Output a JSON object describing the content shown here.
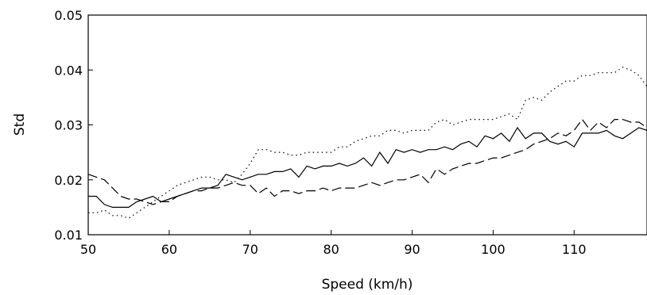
{
  "chart_data": {
    "type": "line",
    "title": "",
    "xlabel": "Speed (km/h)",
    "ylabel": "Std",
    "xlim": [
      50,
      119
    ],
    "ylim": [
      0.01,
      0.05
    ],
    "xticks": [
      "50",
      "60",
      "70",
      "80",
      "90",
      "100",
      "110"
    ],
    "yticks": [
      "0.01",
      "0.02",
      "0.03",
      "0.04",
      "0.05"
    ],
    "grid": false,
    "legend": "none",
    "series": [
      {
        "style": "solid",
        "x": [
          50,
          51,
          52,
          53,
          54,
          55,
          56,
          57,
          58,
          59,
          60,
          61,
          62,
          63,
          64,
          65,
          66,
          67,
          68,
          69,
          70,
          71,
          72,
          73,
          74,
          75,
          76,
          77,
          78,
          79,
          80,
          81,
          82,
          83,
          84,
          85,
          86,
          87,
          88,
          89,
          90,
          91,
          92,
          93,
          94,
          95,
          96,
          97,
          98,
          99,
          100,
          101,
          102,
          103,
          104,
          105,
          106,
          107,
          108,
          109,
          110,
          111,
          112,
          113,
          114,
          115,
          116,
          117,
          118,
          119
        ],
        "y": [
          0.017,
          0.017,
          0.0155,
          0.015,
          0.015,
          0.015,
          0.016,
          0.0165,
          0.017,
          0.016,
          0.0165,
          0.017,
          0.0175,
          0.018,
          0.0185,
          0.0185,
          0.019,
          0.021,
          0.0205,
          0.02,
          0.0205,
          0.021,
          0.021,
          0.0215,
          0.0215,
          0.022,
          0.0205,
          0.0225,
          0.022,
          0.0225,
          0.0225,
          0.023,
          0.0225,
          0.023,
          0.024,
          0.0225,
          0.025,
          0.023,
          0.0255,
          0.025,
          0.0255,
          0.025,
          0.0255,
          0.0255,
          0.026,
          0.0255,
          0.0265,
          0.027,
          0.026,
          0.028,
          0.0275,
          0.0285,
          0.027,
          0.0295,
          0.0275,
          0.0285,
          0.0285,
          0.027,
          0.0265,
          0.027,
          0.026,
          0.0285,
          0.0285,
          0.0285,
          0.029,
          0.028,
          0.0275,
          0.0285,
          0.0295,
          0.029
        ]
      },
      {
        "style": "dashed",
        "x": [
          50,
          51,
          52,
          53,
          54,
          55,
          56,
          57,
          58,
          59,
          60,
          61,
          62,
          63,
          64,
          65,
          66,
          67,
          68,
          69,
          70,
          71,
          72,
          73,
          74,
          75,
          76,
          77,
          78,
          79,
          80,
          81,
          82,
          83,
          84,
          85,
          86,
          87,
          88,
          89,
          90,
          91,
          92,
          93,
          94,
          95,
          96,
          97,
          98,
          99,
          100,
          101,
          102,
          103,
          104,
          105,
          106,
          107,
          108,
          109,
          110,
          111,
          112,
          113,
          114,
          115,
          116,
          117,
          118,
          119
        ],
        "y": [
          0.021,
          0.0205,
          0.02,
          0.0185,
          0.017,
          0.0165,
          0.0165,
          0.016,
          0.0155,
          0.016,
          0.016,
          0.017,
          0.0175,
          0.018,
          0.018,
          0.0185,
          0.0185,
          0.019,
          0.0195,
          0.019,
          0.019,
          0.0175,
          0.0185,
          0.017,
          0.018,
          0.018,
          0.0175,
          0.018,
          0.018,
          0.0185,
          0.018,
          0.0185,
          0.0185,
          0.0185,
          0.019,
          0.0195,
          0.019,
          0.0195,
          0.02,
          0.02,
          0.0205,
          0.021,
          0.0195,
          0.022,
          0.021,
          0.022,
          0.0225,
          0.023,
          0.023,
          0.0235,
          0.024,
          0.024,
          0.0245,
          0.025,
          0.0255,
          0.0265,
          0.027,
          0.0275,
          0.0285,
          0.028,
          0.029,
          0.031,
          0.029,
          0.0305,
          0.0295,
          0.031,
          0.031,
          0.0305,
          0.0305,
          0.0295
        ]
      },
      {
        "style": "dotted",
        "x": [
          50,
          51,
          52,
          53,
          54,
          55,
          56,
          57,
          58,
          59,
          60,
          61,
          62,
          63,
          64,
          65,
          66,
          67,
          68,
          69,
          70,
          71,
          72,
          73,
          74,
          75,
          76,
          77,
          78,
          79,
          80,
          81,
          82,
          83,
          84,
          85,
          86,
          87,
          88,
          89,
          90,
          91,
          92,
          93,
          94,
          95,
          96,
          97,
          98,
          99,
          100,
          101,
          102,
          103,
          104,
          105,
          106,
          107,
          108,
          109,
          110,
          111,
          112,
          113,
          114,
          115,
          116,
          117,
          118,
          119
        ],
        "y": [
          0.014,
          0.014,
          0.0145,
          0.0135,
          0.0135,
          0.013,
          0.014,
          0.015,
          0.016,
          0.017,
          0.018,
          0.019,
          0.0195,
          0.02,
          0.0205,
          0.0205,
          0.02,
          0.02,
          0.0195,
          0.021,
          0.023,
          0.0255,
          0.0255,
          0.025,
          0.025,
          0.0245,
          0.0245,
          0.025,
          0.025,
          0.025,
          0.025,
          0.026,
          0.026,
          0.027,
          0.0275,
          0.028,
          0.028,
          0.029,
          0.029,
          0.0285,
          0.029,
          0.029,
          0.029,
          0.0305,
          0.031,
          0.03,
          0.0305,
          0.031,
          0.031,
          0.031,
          0.031,
          0.0315,
          0.032,
          0.031,
          0.0345,
          0.035,
          0.0345,
          0.036,
          0.037,
          0.038,
          0.038,
          0.039,
          0.039,
          0.0395,
          0.0395,
          0.0395,
          0.0405,
          0.04,
          0.039,
          0.037
        ]
      }
    ]
  }
}
